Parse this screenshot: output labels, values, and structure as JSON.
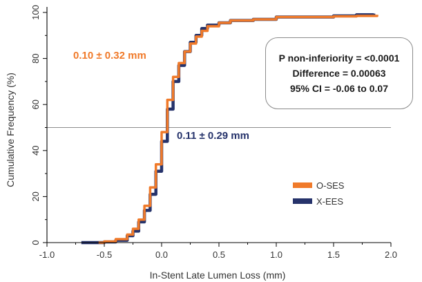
{
  "chart_data": {
    "type": "line",
    "title": "",
    "xlabel": "In-Stent Late Lumen Loss (mm)",
    "ylabel": "Cumulative Frequency (%)",
    "xlim": [
      -1.0,
      2.0
    ],
    "ylim": [
      0,
      100
    ],
    "x_ticks": [
      "-1.0",
      "-0.5",
      "0.0",
      "0.5",
      "1.0",
      "1.5",
      "2.0"
    ],
    "y_ticks": [
      "0",
      "20",
      "40",
      "60",
      "80",
      "100"
    ],
    "reference_line_y": 50,
    "legend_position": "lower-right",
    "colors": {
      "O-SES": "#f07a2a",
      "X-EES": "#26336b"
    },
    "series": [
      {
        "name": "O-SES",
        "x": [
          -0.55,
          -0.5,
          -0.4,
          -0.3,
          -0.25,
          -0.2,
          -0.15,
          -0.1,
          -0.05,
          0.0,
          0.05,
          0.1,
          0.15,
          0.2,
          0.25,
          0.3,
          0.35,
          0.4,
          0.5,
          0.6,
          0.8,
          1.0,
          1.2,
          1.5,
          1.7,
          1.88
        ],
        "y": [
          0,
          0.5,
          1.5,
          3.5,
          6,
          10,
          16,
          24,
          34,
          48,
          62,
          72,
          78,
          83,
          86.5,
          89.5,
          92,
          94,
          95.5,
          96.5,
          97,
          98,
          98,
          98.3,
          98.5,
          99
        ]
      },
      {
        "name": "X-EES",
        "x": [
          -0.7,
          -0.5,
          -0.4,
          -0.3,
          -0.25,
          -0.2,
          -0.15,
          -0.1,
          -0.05,
          0.0,
          0.05,
          0.1,
          0.15,
          0.2,
          0.25,
          0.3,
          0.35,
          0.4,
          0.5,
          0.6,
          0.8,
          1.0,
          1.2,
          1.5,
          1.7,
          1.85
        ],
        "y": [
          0,
          0.3,
          1,
          3,
          5,
          9,
          14,
          21,
          31,
          44,
          58,
          70,
          77,
          83,
          87,
          90,
          93,
          94.5,
          95.5,
          96.5,
          97,
          98,
          98,
          98.5,
          99,
          99.5
        ]
      }
    ],
    "annotations": [
      {
        "text": "0.10 ± 0.32 mm",
        "color": "#f07a2a"
      },
      {
        "text": "0.11 ± 0.29 mm",
        "color": "#26336b"
      }
    ]
  },
  "stats_box": {
    "line1": "P non-inferiority = <0.0001",
    "line2": "Difference = 0.00063",
    "line3": "95% CI = -0.06 to 0.07"
  }
}
